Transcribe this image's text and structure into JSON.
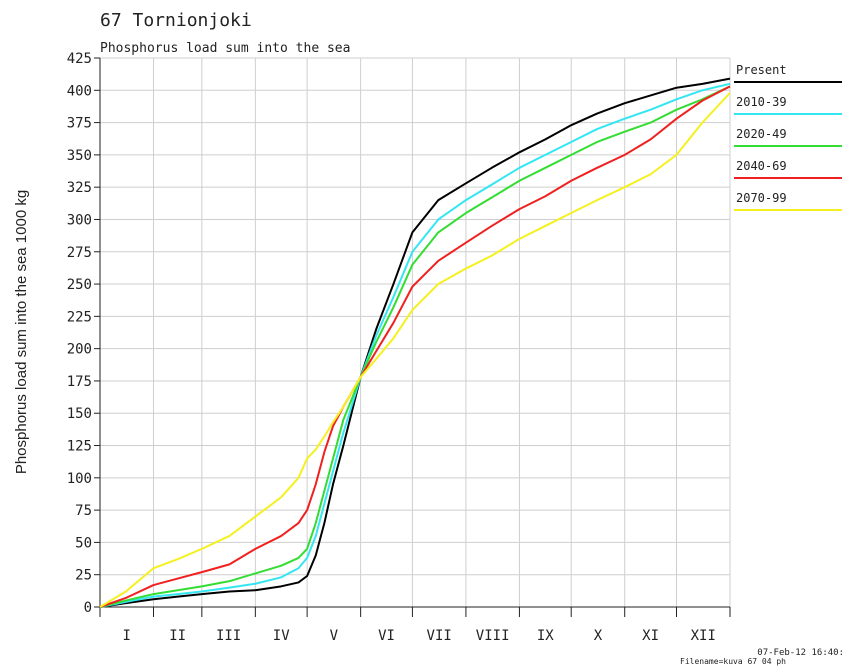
{
  "chart_data": {
    "type": "line",
    "title": "67 Tornionjoki",
    "subtitle": "Phosphorus load sum into the sea",
    "y_label": "Phosphorus load sum into the sea 1000 kg",
    "categories": [
      "I",
      "II",
      "III",
      "IV",
      "V",
      "VI",
      "VII",
      "VIII",
      "IX",
      "X",
      "XI",
      "XII"
    ],
    "x": [
      0,
      15,
      31,
      45,
      59,
      75,
      90,
      105,
      115,
      120,
      125,
      130,
      135,
      141,
      151,
      160,
      170,
      181,
      196,
      212,
      227,
      243,
      258,
      273,
      288,
      304,
      319,
      334,
      349,
      365
    ],
    "xlim": [
      0,
      365
    ],
    "xticks": [
      0,
      31,
      59,
      90,
      120,
      151,
      181,
      212,
      243,
      273,
      304,
      334,
      365
    ],
    "ylim": [
      0,
      425
    ],
    "yticks": [
      0,
      25,
      50,
      75,
      100,
      125,
      150,
      175,
      200,
      225,
      250,
      275,
      300,
      325,
      350,
      375,
      400,
      425
    ],
    "grid": true,
    "legend": "right",
    "series": [
      {
        "name": "Present",
        "color": "#000000",
        "values": [
          0,
          3,
          6,
          8,
          10,
          12,
          13,
          16,
          19,
          24,
          40,
          65,
          95,
          125,
          178,
          215,
          250,
          290,
          315,
          328,
          340,
          352,
          362,
          373,
          382,
          390,
          396,
          402,
          405,
          409
        ]
      },
      {
        "name": "2010-39",
        "color": "#33e6f2",
        "values": [
          0,
          4,
          8,
          10,
          12,
          15,
          18,
          23,
          30,
          38,
          55,
          80,
          105,
          135,
          178,
          210,
          240,
          275,
          300,
          315,
          327,
          340,
          350,
          360,
          370,
          378,
          385,
          393,
          400,
          405
        ]
      },
      {
        "name": "2020-49",
        "color": "#33dd33",
        "values": [
          0,
          5,
          10,
          13,
          16,
          20,
          26,
          32,
          38,
          45,
          65,
          90,
          115,
          145,
          178,
          205,
          232,
          265,
          290,
          305,
          317,
          330,
          340,
          350,
          360,
          368,
          375,
          385,
          393,
          403
        ]
      },
      {
        "name": "2040-69",
        "color": "#f02020",
        "values": [
          0,
          7,
          17,
          22,
          27,
          33,
          45,
          55,
          65,
          75,
          95,
          120,
          140,
          155,
          178,
          198,
          220,
          248,
          268,
          282,
          295,
          308,
          318,
          330,
          340,
          350,
          362,
          378,
          392,
          403
        ]
      },
      {
        "name": "2070-99",
        "color": "#f5f020",
        "values": [
          0,
          12,
          30,
          37,
          45,
          55,
          70,
          85,
          100,
          115,
          122,
          132,
          143,
          155,
          178,
          192,
          208,
          230,
          250,
          262,
          272,
          285,
          295,
          305,
          315,
          325,
          335,
          350,
          375,
          398
        ]
      }
    ],
    "footer": [
      "07-Feb-12 16:40:",
      "Filename=kuva 67 04 ph"
    ]
  }
}
